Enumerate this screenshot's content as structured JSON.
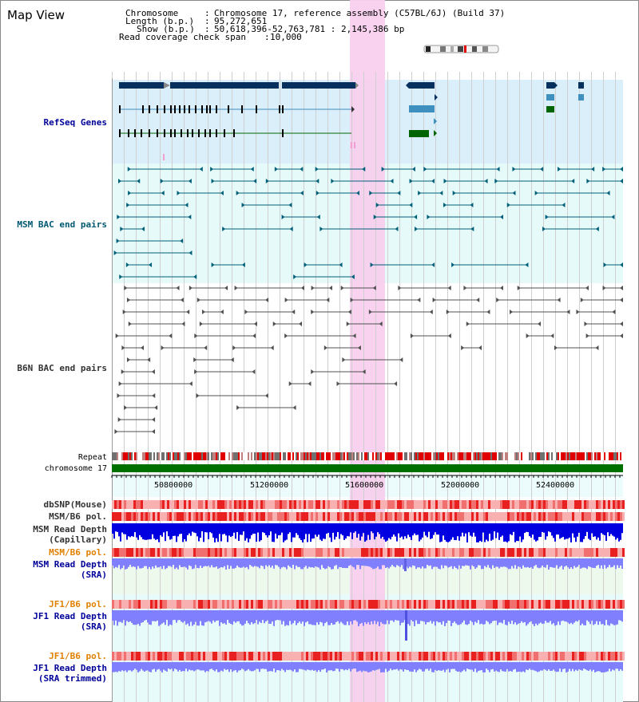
{
  "header": {
    "title": "Map View",
    "chromosome_key": "Chromosome",
    "chromosome_val": "Chromosome 17, reference assembly (C57BL/6J) (Build 37)",
    "length_key": "Length (b.p.)",
    "length_val": "95,272,651",
    "show_key": "Show (b.p.)",
    "show_val": "50,618,396-52,763,781 : 2,145,386 bp",
    "coverage_key": "Read coverage check span",
    "coverage_val": "10,000"
  },
  "tracks": {
    "refseq": "RefSeq Genes",
    "msm_bac": "MSM BAC end pairs",
    "b6n_bac": "B6N BAC end pairs",
    "repeat": "Repeat",
    "chromosome": "chromosome 17",
    "dbsnp": "dbSNP(Mouse)",
    "msm_b6_pol_1": "MSM/B6 pol.",
    "msm_read_depth_cap_1": "MSM Read Depth",
    "msm_read_depth_cap_2": "(Capillary)",
    "msm_b6_pol_2": "MSM/B6 pol.",
    "msm_read_depth_sra_1": "MSM Read Depth",
    "msm_read_depth_sra_2": "(SRA)",
    "jf1_b6_pol_1": "JF1/B6 pol.",
    "jf1_read_depth_sra_1": "JF1 Read Depth",
    "jf1_read_depth_sra_2": "(SRA)",
    "jf1_b6_pol_2": "JF1/B6 pol.",
    "jf1_read_depth_trim_1": "JF1 Read Depth",
    "jf1_read_depth_trim_2": "(SRA trimmed)"
  },
  "axis": {
    "ticks": [
      "50800000",
      "51200000",
      "51600000",
      "52000000",
      "52400000"
    ]
  },
  "colors": {
    "refseq_bg": "#dbeffa",
    "bac_bg": "#e6faf9",
    "gene_dark": "#06315e",
    "gene_mid": "#3f8fbf",
    "gene_green": "#006400",
    "msm_bac": "#00607a",
    "b6n_bac": "#505050",
    "highlight": "#f8d0ee",
    "chrom_bar": "#007000",
    "depth_blue": "#0000e0",
    "depth_light": "#8080ff",
    "label_blue": "#000099",
    "label_teal": "#005870",
    "label_orange": "#e08000",
    "label_gray": "#333333"
  }
}
